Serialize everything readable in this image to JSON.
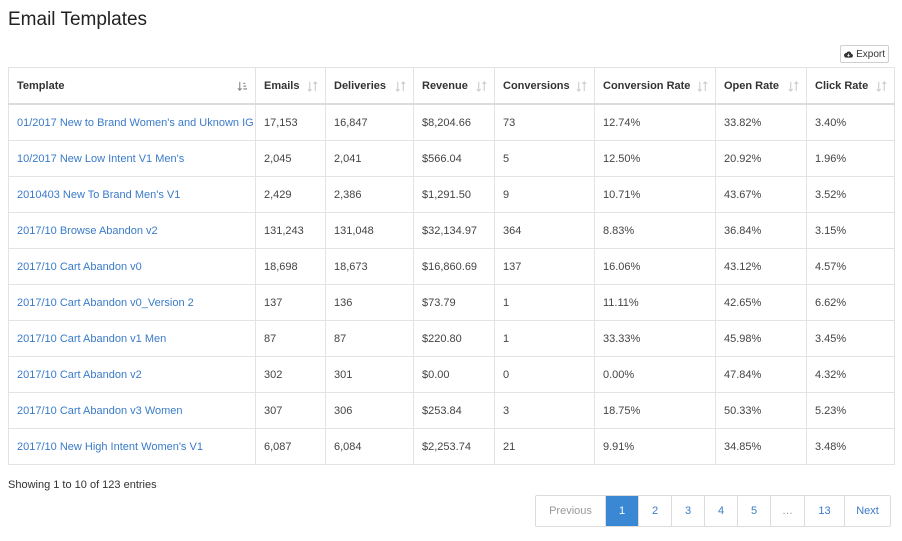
{
  "page_title": "Email Templates",
  "export_label": "Export",
  "columns": [
    {
      "label": "Template",
      "sort": "sorted-asc"
    },
    {
      "label": "Emails",
      "sort": "unsorted"
    },
    {
      "label": "Deliveries",
      "sort": "unsorted"
    },
    {
      "label": "Revenue",
      "sort": "unsorted"
    },
    {
      "label": "Conversions",
      "sort": "unsorted"
    },
    {
      "label": "Conversion Rate",
      "sort": "unsorted"
    },
    {
      "label": "Open Rate",
      "sort": "unsorted"
    },
    {
      "label": "Click Rate",
      "sort": "unsorted"
    }
  ],
  "rows": [
    [
      "01/2017 New to Brand Women's and Uknown IG",
      "17,153",
      "16,847",
      "$8,204.66",
      "73",
      "12.74%",
      "33.82%",
      "3.40%"
    ],
    [
      "10/2017 New Low Intent V1 Men's",
      "2,045",
      "2,041",
      "$566.04",
      "5",
      "12.50%",
      "20.92%",
      "1.96%"
    ],
    [
      "2010403 New To Brand Men's V1",
      "2,429",
      "2,386",
      "$1,291.50",
      "9",
      "10.71%",
      "43.67%",
      "3.52%"
    ],
    [
      "2017/10 Browse Abandon v2",
      "131,243",
      "131,048",
      "$32,134.97",
      "364",
      "8.83%",
      "36.84%",
      "3.15%"
    ],
    [
      "2017/10 Cart Abandon v0",
      "18,698",
      "18,673",
      "$16,860.69",
      "137",
      "16.06%",
      "43.12%",
      "4.57%"
    ],
    [
      "2017/10 Cart Abandon v0_Version 2",
      "137",
      "136",
      "$73.79",
      "1",
      "11.11%",
      "42.65%",
      "6.62%"
    ],
    [
      "2017/10 Cart Abandon v1 Men",
      "87",
      "87",
      "$220.80",
      "1",
      "33.33%",
      "45.98%",
      "3.45%"
    ],
    [
      "2017/10 Cart Abandon v2",
      "302",
      "301",
      "$0.00",
      "0",
      "0.00%",
      "47.84%",
      "4.32%"
    ],
    [
      "2017/10 Cart Abandon v3 Women",
      "307",
      "306",
      "$253.84",
      "3",
      "18.75%",
      "50.33%",
      "5.23%"
    ],
    [
      "2017/10 New High Intent Women's V1",
      "6,087",
      "6,084",
      "$2,253.74",
      "21",
      "9.91%",
      "34.85%",
      "3.48%"
    ]
  ],
  "info_text": "Showing 1 to 10 of 123 entries",
  "pagination": [
    {
      "label": "Previous",
      "state": "disabled"
    },
    {
      "label": "1",
      "state": "active"
    },
    {
      "label": "2",
      "state": "normal"
    },
    {
      "label": "3",
      "state": "normal"
    },
    {
      "label": "4",
      "state": "normal"
    },
    {
      "label": "5",
      "state": "normal"
    },
    {
      "label": "…",
      "state": "ellipsis"
    },
    {
      "label": "13",
      "state": "normal"
    },
    {
      "label": "Next",
      "state": "normal"
    }
  ],
  "colors": {
    "link": "#3a7bc8",
    "active_page": "#3a87d4"
  }
}
